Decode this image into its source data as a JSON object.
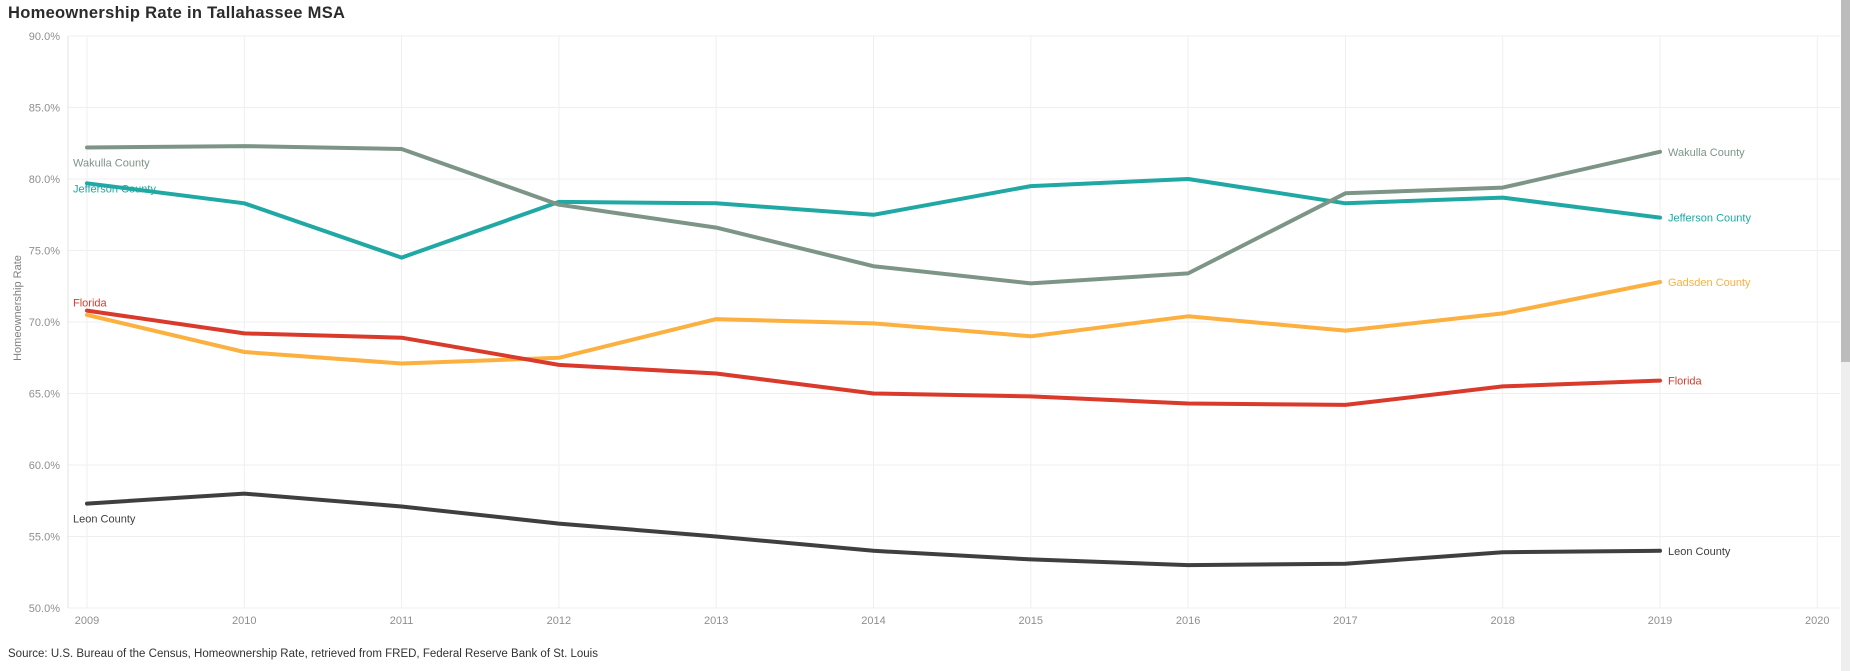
{
  "title": "Homeownership Rate in Tallahassee MSA",
  "y_axis_title": "Homeownership Rate",
  "source": "Source: U.S. Bureau of the Census, Homeownership Rate, retrieved from FRED, Federal Reserve Bank of St. Louis",
  "colors": {
    "background": "#ffffff",
    "grid": "#efefef",
    "plot_border": "#e3e3e3",
    "axis_text": "#8f8f8f",
    "title_text": "#2b2b2b",
    "source_text": "#323232",
    "scrollbar_track": "#eeeeee",
    "scrollbar_thumb": "#bcbcbc"
  },
  "chart_data": {
    "type": "line",
    "x": [
      2009,
      2010,
      2011,
      2012,
      2013,
      2014,
      2015,
      2016,
      2017,
      2018,
      2019
    ],
    "x_axis_ticks": [
      "2009",
      "2010",
      "2011",
      "2012",
      "2013",
      "2014",
      "2015",
      "2016",
      "2017",
      "2018",
      "2019",
      "2020"
    ],
    "xlim": [
      2009,
      2020
    ],
    "ylim": [
      50,
      90
    ],
    "y_ticks": [
      50,
      55,
      60,
      65,
      70,
      75,
      80,
      85,
      90
    ],
    "y_tick_labels": [
      "50.0%",
      "55.0%",
      "60.0%",
      "65.0%",
      "70.0%",
      "75.0%",
      "80.0%",
      "85.0%",
      "90.0%"
    ],
    "grid": true,
    "legend_position": "line-end-labels-both-sides",
    "title": "Homeownership Rate in Tallahassee MSA",
    "xlabel": "",
    "ylabel": "Homeownership Rate",
    "series": [
      {
        "name": "Wakulla County",
        "color": "#7d9587",
        "left_label": true,
        "values": [
          82.2,
          82.3,
          82.1,
          78.2,
          76.6,
          73.9,
          72.7,
          73.4,
          79.0,
          79.4,
          81.9
        ]
      },
      {
        "name": "Jefferson County",
        "color": "#1fa8a4",
        "left_label": true,
        "values": [
          79.7,
          78.3,
          74.5,
          78.4,
          78.3,
          77.5,
          79.5,
          80.0,
          78.3,
          78.7,
          77.3
        ]
      },
      {
        "name": "Gadsden County",
        "color": "#fbb040",
        "left_label": false,
        "values": [
          70.5,
          67.9,
          67.1,
          67.5,
          70.2,
          69.9,
          69.0,
          70.4,
          69.4,
          70.6,
          72.8
        ]
      },
      {
        "name": "Florida",
        "color": "#d93a2b",
        "left_label": true,
        "values": [
          70.8,
          69.2,
          68.9,
          67.0,
          66.4,
          65.0,
          64.8,
          64.3,
          64.2,
          65.5,
          65.9
        ]
      },
      {
        "name": "Leon County",
        "color": "#3f3f3f",
        "left_label": true,
        "values": [
          57.3,
          58.0,
          57.1,
          55.9,
          55.0,
          54.0,
          53.4,
          53.0,
          53.1,
          53.9,
          54.0
        ]
      }
    ]
  }
}
